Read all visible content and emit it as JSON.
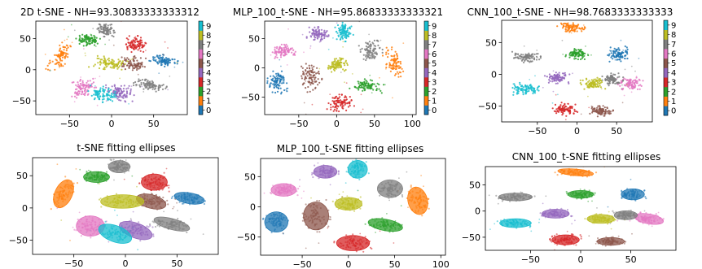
{
  "chart_data": [
    {
      "id": "tsne-2d",
      "type": "scatter",
      "title": "2D t-SNE - NH=93.30833333333312",
      "xticks": [
        -50,
        0,
        50
      ],
      "yticks": [
        -50,
        0,
        50
      ],
      "xlim": [
        -90,
        90
      ],
      "ylim": [
        -72,
        78
      ],
      "colorbar": {
        "ticks": [
          0,
          1,
          2,
          3,
          4,
          5,
          6,
          7,
          8,
          9
        ]
      },
      "clusters": [
        {
          "label": 0,
          "cx": 62,
          "cy": 15,
          "rx": 14,
          "ry": 8,
          "angle": -10
        },
        {
          "label": 1,
          "cx": -60,
          "cy": 22,
          "rx": 8,
          "ry": 22,
          "angle": -25
        },
        {
          "label": 2,
          "cx": -28,
          "cy": 48,
          "rx": 12,
          "ry": 8,
          "angle": 0
        },
        {
          "label": 3,
          "cx": 28,
          "cy": 40,
          "rx": 12,
          "ry": 12,
          "angle": 0
        },
        {
          "label": 4,
          "cx": 10,
          "cy": -35,
          "rx": 16,
          "ry": 11,
          "angle": -20
        },
        {
          "label": 5,
          "cx": 25,
          "cy": 10,
          "rx": 14,
          "ry": 10,
          "angle": -15
        },
        {
          "label": 6,
          "cx": -34,
          "cy": -28,
          "rx": 13,
          "ry": 15,
          "angle": 0
        },
        {
          "label": 7,
          "cx": 45,
          "cy": -25,
          "rx": 17,
          "ry": 8,
          "angle": -15
        },
        {
          "label": 8,
          "cx": -3,
          "cy": 10,
          "rx": 20,
          "ry": 10,
          "angle": 0
        },
        {
          "label": 9,
          "cx": -10,
          "cy": -40,
          "rx": 16,
          "ry": 12,
          "angle": -20
        },
        {
          "label": 7,
          "cx": -6,
          "cy": 64,
          "rx": 10,
          "ry": 9,
          "angle": 0
        }
      ]
    },
    {
      "id": "mlp-tsne",
      "type": "scatter",
      "title": "MLP_100_t-SNE - NH=95.86833333333321",
      "xticks": [
        -50,
        0,
        50,
        100
      ],
      "yticks": [
        -50,
        0,
        50
      ],
      "xlim": [
        -95,
        105
      ],
      "ylim": [
        -80,
        80
      ],
      "colorbar": {
        "ticks": [
          0,
          1,
          2,
          3,
          4,
          5,
          6,
          7,
          8,
          9
        ]
      },
      "clusters": [
        {
          "label": 0,
          "cx": -78,
          "cy": -25,
          "rx": 12,
          "ry": 16,
          "angle": 0
        },
        {
          "label": 1,
          "cx": 75,
          "cy": 10,
          "rx": 10,
          "ry": 22,
          "angle": 15
        },
        {
          "label": 2,
          "cx": 40,
          "cy": -30,
          "rx": 18,
          "ry": 9,
          "angle": -10
        },
        {
          "label": 3,
          "cx": 5,
          "cy": -60,
          "rx": 17,
          "ry": 12,
          "angle": 0
        },
        {
          "label": 4,
          "cx": -25,
          "cy": 58,
          "rx": 12,
          "ry": 10,
          "angle": 0
        },
        {
          "label": 5,
          "cx": -35,
          "cy": -15,
          "rx": 13,
          "ry": 22,
          "angle": 0
        },
        {
          "label": 6,
          "cx": -70,
          "cy": 28,
          "rx": 13,
          "ry": 10,
          "angle": 0
        },
        {
          "label": 7,
          "cx": 45,
          "cy": 30,
          "rx": 13,
          "ry": 14,
          "angle": 0
        },
        {
          "label": 8,
          "cx": 0,
          "cy": 5,
          "rx": 14,
          "ry": 10,
          "angle": 0
        },
        {
          "label": 9,
          "cx": 10,
          "cy": 62,
          "rx": 10,
          "ry": 14,
          "angle": 0
        }
      ]
    },
    {
      "id": "cnn-tsne",
      "type": "scatter",
      "title": "CNN_100_t-SNE - NH=98.7683333333333",
      "xticks": [
        -50,
        0,
        50
      ],
      "yticks": [
        -50,
        0,
        50
      ],
      "xlim": [
        -95,
        95
      ],
      "ylim": [
        -75,
        85
      ],
      "colorbar": {
        "ticks": [
          0,
          1,
          2,
          3,
          4,
          5,
          6,
          7,
          8,
          9
        ]
      },
      "clusters": [
        {
          "label": 0,
          "cx": 52,
          "cy": 32,
          "rx": 11,
          "ry": 10,
          "angle": 0
        },
        {
          "label": 1,
          "cx": -5,
          "cy": 74,
          "rx": 17,
          "ry": 6,
          "angle": -5
        },
        {
          "label": 2,
          "cx": 0,
          "cy": 32,
          "rx": 12,
          "ry": 7,
          "angle": 0
        },
        {
          "label": 3,
          "cx": -15,
          "cy": -55,
          "rx": 13,
          "ry": 9,
          "angle": 0
        },
        {
          "label": 4,
          "cx": -25,
          "cy": -5,
          "rx": 13,
          "ry": 8,
          "angle": 0
        },
        {
          "label": 5,
          "cx": 30,
          "cy": -58,
          "rx": 13,
          "ry": 7,
          "angle": 0
        },
        {
          "label": 6,
          "cx": 68,
          "cy": -15,
          "rx": 14,
          "ry": 9,
          "angle": -10
        },
        {
          "label": 7,
          "cx": 45,
          "cy": -8,
          "rx": 11,
          "ry": 8,
          "angle": 0
        },
        {
          "label": 8,
          "cx": 20,
          "cy": -15,
          "rx": 13,
          "ry": 8,
          "angle": 0
        },
        {
          "label": 9,
          "cx": -65,
          "cy": -23,
          "rx": 15,
          "ry": 8,
          "angle": 0
        },
        {
          "label": 7,
          "cx": -65,
          "cy": 27,
          "rx": 16,
          "ry": 7,
          "angle": 0
        }
      ]
    },
    {
      "id": "tsne-ellipses",
      "type": "scatter",
      "title": "t-SNE fitting ellipses",
      "xticks": [
        -50,
        0,
        50
      ],
      "yticks": [
        -50,
        0,
        50
      ],
      "xlim": [
        -90,
        90
      ],
      "ylim": [
        -72,
        78
      ],
      "ref": "tsne-2d",
      "ellipses": true
    },
    {
      "id": "mlp-ellipses",
      "type": "scatter",
      "title": "MLP_100_t-SNE fitting ellipses",
      "xticks": [
        -50,
        0,
        50,
        100
      ],
      "yticks": [
        -50,
        0,
        50
      ],
      "xlim": [
        -95,
        105
      ],
      "ylim": [
        -80,
        80
      ],
      "ref": "mlp-tsne",
      "ellipses": true
    },
    {
      "id": "cnn-ellipses",
      "type": "scatter",
      "title": "CNN_100_t-SNE fitting ellipses",
      "xticks": [
        -50,
        0,
        50
      ],
      "yticks": [
        -50,
        0,
        50
      ],
      "xlim": [
        -95,
        95
      ],
      "ylim": [
        -75,
        85
      ],
      "ref": "cnn-tsne",
      "ellipses": true
    }
  ],
  "palette": [
    "#1f77b4",
    "#ff7f0e",
    "#2ca02c",
    "#d62728",
    "#9467bd",
    "#8c564b",
    "#e377c2",
    "#7f7f7f",
    "#bcbd22",
    "#17becf"
  ]
}
